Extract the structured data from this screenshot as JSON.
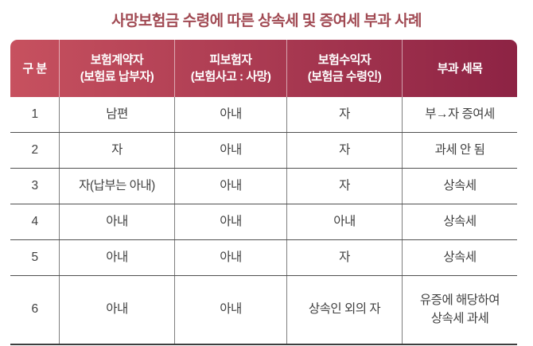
{
  "title": "사망보험금 수령에 따른 상속세 및 증여세 부과 사례",
  "table": {
    "columns": [
      {
        "label": "구 분",
        "sub": ""
      },
      {
        "label": "보험계약자",
        "sub": "(보험료 납부자)"
      },
      {
        "label": "피보험자",
        "sub": "(보험사고 : 사망)"
      },
      {
        "label": "보험수익자",
        "sub": "(보험금 수령인)"
      },
      {
        "label": "부과 세목",
        "sub": ""
      }
    ],
    "rows": [
      {
        "no": "1",
        "policyholder": "남편",
        "insured": "아내",
        "beneficiary": "자",
        "tax": "부→자 증여세"
      },
      {
        "no": "2",
        "policyholder": "자",
        "insured": "아내",
        "beneficiary": "자",
        "tax": "과세 안 됨"
      },
      {
        "no": "3",
        "policyholder": "자(납부는 아내)",
        "insured": "아내",
        "beneficiary": "자",
        "tax": "상속세"
      },
      {
        "no": "4",
        "policyholder": "아내",
        "insured": "아내",
        "beneficiary": "아내",
        "tax": "상속세"
      },
      {
        "no": "5",
        "policyholder": "아내",
        "insured": "아내",
        "beneficiary": "자",
        "tax": "상속세"
      },
      {
        "no": "6",
        "policyholder": "아내",
        "insured": "아내",
        "beneficiary": "상속인 외의 자",
        "tax": "유증에 해당하여\n상속세 과세"
      }
    ]
  },
  "colors": {
    "header_gradient_start": "#c7515f",
    "header_gradient_end": "#8d2344",
    "title_color": "#a14a53",
    "body_text": "#404040",
    "row_line": "#4f4f4f",
    "column_line": "#7e7e7e",
    "bottom_border": "#3e3e3e"
  },
  "chart_data": {
    "type": "table",
    "title": "사망보험금 수령에 따른 상속세 및 증여세 부과 사례",
    "columns": [
      "구 분",
      "보험계약자 (보험료 납부자)",
      "피보험자 (보험사고 : 사망)",
      "보험수익자 (보험금 수령인)",
      "부과 세목"
    ],
    "rows": [
      [
        "1",
        "남편",
        "아내",
        "자",
        "부→자 증여세"
      ],
      [
        "2",
        "자",
        "아내",
        "자",
        "과세 안 됨"
      ],
      [
        "3",
        "자(납부는 아내)",
        "아내",
        "자",
        "상속세"
      ],
      [
        "4",
        "아내",
        "아내",
        "아내",
        "상속세"
      ],
      [
        "5",
        "아내",
        "아내",
        "자",
        "상속세"
      ],
      [
        "6",
        "아내",
        "아내",
        "상속인 외의 자",
        "유증에 해당하여 상속세 과세"
      ]
    ],
    "layout": {
      "header_background": "gradient #c7515f → #8d2344",
      "header_text_color": "#ffffff",
      "grid": "thin gray internal lines, thick dark bottom border, rounded header top corners"
    }
  }
}
